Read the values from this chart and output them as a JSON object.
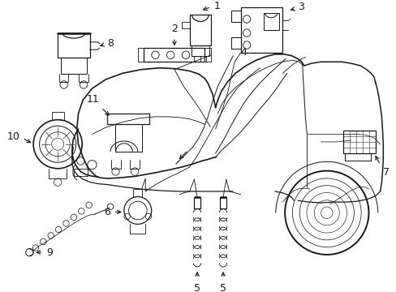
{
  "background_color": "#ffffff",
  "line_color": "#1a1a1a",
  "fig_width": 4.89,
  "fig_height": 3.6,
  "dpi": 100,
  "label_fontsize": 9,
  "line_width": 0.9
}
